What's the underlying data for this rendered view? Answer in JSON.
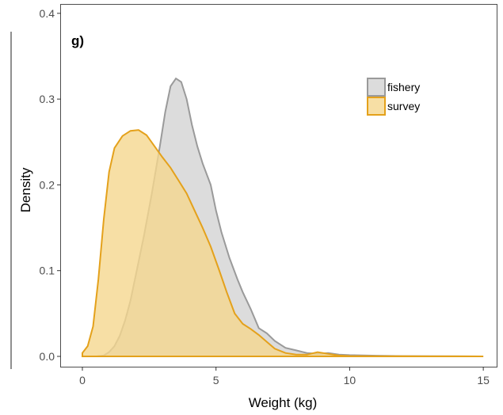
{
  "chart_data": {
    "type": "area",
    "panel_tag": "g)",
    "xlabel": "Weight (kg)",
    "ylabel": "Density",
    "xlim": [
      -0.8,
      15.5
    ],
    "ylim": [
      -0.012,
      0.41
    ],
    "x_ticks": [
      0,
      5,
      10,
      15
    ],
    "x_tick_labels": [
      "0",
      "5",
      "10",
      "15"
    ],
    "y_ticks": [
      0.0,
      0.1,
      0.2,
      0.3,
      0.4
    ],
    "y_tick_labels": [
      "0.0",
      "0.1",
      "0.2",
      "0.3",
      "0.4"
    ],
    "grid": false,
    "legend_position": "top-right",
    "series": [
      {
        "name": "fishery",
        "fill": "#d3d3d3",
        "stroke": "#9a9a9a",
        "points": [
          [
            0,
            0.0
          ],
          [
            0.5,
            0.0
          ],
          [
            0.8,
            0.001
          ],
          [
            1.0,
            0.005
          ],
          [
            1.2,
            0.012
          ],
          [
            1.4,
            0.024
          ],
          [
            1.6,
            0.042
          ],
          [
            1.8,
            0.065
          ],
          [
            2.0,
            0.095
          ],
          [
            2.3,
            0.14
          ],
          [
            2.6,
            0.19
          ],
          [
            2.9,
            0.245
          ],
          [
            3.1,
            0.285
          ],
          [
            3.3,
            0.315
          ],
          [
            3.5,
            0.324
          ],
          [
            3.7,
            0.32
          ],
          [
            3.9,
            0.3
          ],
          [
            4.1,
            0.27
          ],
          [
            4.3,
            0.245
          ],
          [
            4.5,
            0.225
          ],
          [
            4.8,
            0.2
          ],
          [
            5.0,
            0.17
          ],
          [
            5.2,
            0.145
          ],
          [
            5.5,
            0.115
          ],
          [
            5.8,
            0.09
          ],
          [
            6.0,
            0.075
          ],
          [
            6.3,
            0.055
          ],
          [
            6.6,
            0.033
          ],
          [
            6.9,
            0.027
          ],
          [
            7.2,
            0.018
          ],
          [
            7.6,
            0.01
          ],
          [
            8.0,
            0.007
          ],
          [
            8.4,
            0.004
          ],
          [
            8.8,
            0.003
          ],
          [
            9.2,
            0.004
          ],
          [
            9.6,
            0.002
          ],
          [
            10.0,
            0.0015
          ],
          [
            11.0,
            0.0008
          ],
          [
            12.0,
            0.0004
          ],
          [
            13.0,
            0.0002
          ],
          [
            14.0,
            0.0001
          ],
          [
            15.0,
            0.0
          ]
        ]
      },
      {
        "name": "survey",
        "fill": "#f5d78f",
        "stroke": "#e4a11b",
        "points": [
          [
            0,
            0.004
          ],
          [
            0.2,
            0.012
          ],
          [
            0.4,
            0.035
          ],
          [
            0.6,
            0.09
          ],
          [
            0.8,
            0.16
          ],
          [
            1.0,
            0.215
          ],
          [
            1.2,
            0.243
          ],
          [
            1.5,
            0.257
          ],
          [
            1.8,
            0.263
          ],
          [
            2.1,
            0.264
          ],
          [
            2.4,
            0.258
          ],
          [
            2.7,
            0.245
          ],
          [
            3.0,
            0.232
          ],
          [
            3.3,
            0.22
          ],
          [
            3.6,
            0.205
          ],
          [
            3.9,
            0.19
          ],
          [
            4.2,
            0.17
          ],
          [
            4.5,
            0.15
          ],
          [
            4.8,
            0.128
          ],
          [
            5.1,
            0.102
          ],
          [
            5.4,
            0.075
          ],
          [
            5.7,
            0.05
          ],
          [
            6.0,
            0.038
          ],
          [
            6.3,
            0.032
          ],
          [
            6.6,
            0.025
          ],
          [
            6.9,
            0.017
          ],
          [
            7.2,
            0.009
          ],
          [
            7.6,
            0.004
          ],
          [
            8.0,
            0.002
          ],
          [
            8.4,
            0.002
          ],
          [
            8.8,
            0.005
          ],
          [
            9.2,
            0.003
          ],
          [
            9.6,
            0.001
          ],
          [
            10.0,
            0.0005
          ],
          [
            11.0,
            0.0003
          ],
          [
            12.0,
            0.0002
          ],
          [
            13.0,
            0.0001
          ],
          [
            14.0,
            0.0001
          ],
          [
            15.0,
            0.0
          ]
        ]
      }
    ]
  }
}
